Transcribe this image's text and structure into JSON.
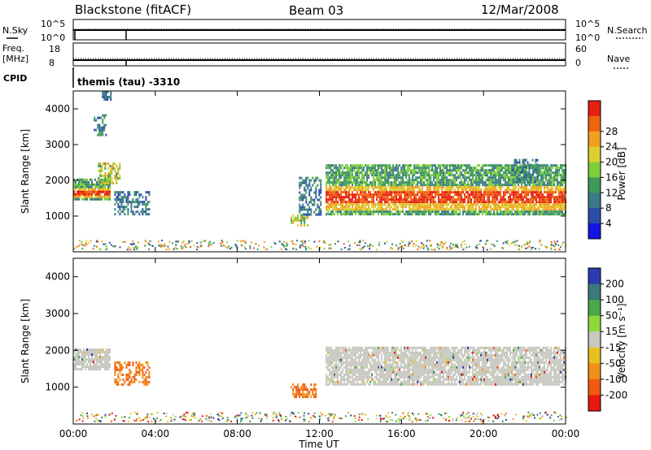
{
  "header": {
    "title": "Blackstone (fitACF)",
    "beam": "Beam 03",
    "date": "12/Mar/2008"
  },
  "summary_panels": {
    "nsky": {
      "label": "N.Sky",
      "right_label": "N.Search",
      "left_ticks": [
        "10^5",
        "10^0"
      ],
      "right_ticks": [
        "10^5",
        "10^0"
      ]
    },
    "freq": {
      "label_line1": "Freq.",
      "label_line2": "[MHz]",
      "right_label": "Nave",
      "left_ticks": [
        "18",
        "8"
      ],
      "right_ticks": [
        "60",
        "0"
      ]
    },
    "cpid": {
      "label": "CPID",
      "value": "themis (tau) -3310"
    }
  },
  "chart_data": [
    {
      "type": "heatmap",
      "name": "power",
      "ylabel": "Slant Range [km]",
      "ylim": [
        0,
        4500
      ],
      "yticks": [
        "1000",
        "2000",
        "3000",
        "4000"
      ],
      "xlim_hours": [
        0,
        24
      ],
      "colorbar": {
        "label": "Power [dB]",
        "ticks": [
          "4",
          "8",
          "12",
          "16",
          "20",
          "24",
          "28"
        ],
        "colors": [
          "#1414e6",
          "#2a4ea8",
          "#3a7a88",
          "#3f9a5a",
          "#7fcf3a",
          "#dcd030",
          "#f0a020",
          "#ee6510",
          "#e52010"
        ]
      },
      "regions": [
        {
          "t0": 0.0,
          "t1": 1.8,
          "r0": 1500,
          "r1": 2050,
          "level": "high"
        },
        {
          "t0": 1.2,
          "t1": 2.3,
          "r0": 1950,
          "r1": 2500,
          "level": "mid"
        },
        {
          "t0": 1.0,
          "t1": 1.6,
          "r0": 3300,
          "r1": 3850,
          "level": "low"
        },
        {
          "t0": 1.4,
          "t1": 1.8,
          "r0": 4250,
          "r1": 4500,
          "level": "low"
        },
        {
          "t0": 2.0,
          "t1": 3.7,
          "r0": 1050,
          "r1": 1700,
          "level": "low"
        },
        {
          "t0": 10.6,
          "t1": 11.4,
          "r0": 750,
          "r1": 1050,
          "level": "mid"
        },
        {
          "t0": 11.0,
          "t1": 12.1,
          "r0": 1050,
          "r1": 2100,
          "level": "low"
        },
        {
          "t0": 12.3,
          "t1": 24.0,
          "r0": 1050,
          "r1": 2450,
          "level": "high"
        },
        {
          "t0": 21.4,
          "t1": 22.6,
          "r0": 1950,
          "r1": 2600,
          "level": "low"
        }
      ]
    },
    {
      "type": "heatmap",
      "name": "velocity",
      "ylabel": "Slant Range [km]",
      "ylim": [
        0,
        4500
      ],
      "yticks": [
        "1000",
        "2000",
        "3000",
        "4000"
      ],
      "xlabel": "Time UT",
      "xticks": [
        "00:00",
        "04:00",
        "08:00",
        "12:00",
        "16:00",
        "20:00",
        "00:00"
      ],
      "xlim_hours": [
        0,
        24
      ],
      "colorbar": {
        "label": "Velocity [m s⁻¹]",
        "ticks": [
          "200",
          "100",
          "50",
          "15",
          "-15",
          "-50",
          "-100",
          "-200"
        ],
        "colors": [
          "#2a3ab0",
          "#3a7a78",
          "#4aa84a",
          "#8fd83a",
          "#c8c8c0",
          "#e8c020",
          "#f09018",
          "#f05a10",
          "#e81810"
        ]
      },
      "regions": [
        {
          "t0": 0.0,
          "t1": 1.8,
          "r0": 1500,
          "r1": 2050,
          "level": "ground"
        },
        {
          "t0": 2.0,
          "t1": 3.7,
          "r0": 1100,
          "r1": 1700,
          "level": "neg"
        },
        {
          "t0": 12.3,
          "t1": 24.0,
          "r0": 1050,
          "r1": 2100,
          "level": "ground"
        },
        {
          "t0": 10.6,
          "t1": 11.8,
          "r0": 750,
          "r1": 1100,
          "level": "neg"
        }
      ]
    }
  ]
}
